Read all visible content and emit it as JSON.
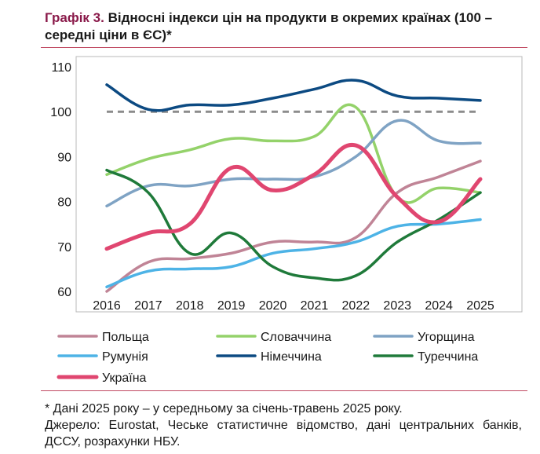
{
  "title": {
    "number": "Графік 3.",
    "text": "Відносні індекси цін на продукти в окремих країнах (100 – середні ціни в ЄС)*"
  },
  "footnotes": {
    "note": "* Дані 2025 року – у середньому за січень-травень 2025 року.",
    "source": "Джерело: Eurostat, Чеське статистичне відомство, дані центральних банків, ДССУ, розрахунки НБУ."
  },
  "chart_data": {
    "type": "line",
    "x": [
      2016,
      2017,
      2018,
      2019,
      2020,
      2021,
      2022,
      2023,
      2024,
      2025
    ],
    "ylim": [
      60,
      110
    ],
    "yticks": [
      60,
      70,
      80,
      90,
      100,
      110
    ],
    "reference_line": 100,
    "grid": false,
    "legend_position": "bottom",
    "series": [
      {
        "name": "Польща",
        "color": "#c08496",
        "values": [
          60,
          66.5,
          67.3,
          68.5,
          71,
          71,
          72,
          82,
          85.5,
          89
        ]
      },
      {
        "name": "Словаччина",
        "color": "#94d26a",
        "values": [
          86,
          89.5,
          91.5,
          94,
          93.5,
          94.5,
          101,
          81,
          83,
          82
        ]
      },
      {
        "name": "Угорщина",
        "color": "#7fa3c4",
        "values": [
          79,
          83.5,
          83.5,
          85,
          85,
          85.5,
          90,
          98,
          93.5,
          93
        ]
      },
      {
        "name": "Румунія",
        "color": "#4db3e6",
        "values": [
          61,
          64.5,
          65,
          65.5,
          68.5,
          69.5,
          71,
          74.5,
          75,
          76
        ]
      },
      {
        "name": "Німеччина",
        "color": "#0c4a82",
        "values": [
          106,
          100.5,
          101.5,
          101.5,
          103,
          105,
          107,
          103.5,
          103,
          102.5
        ]
      },
      {
        "name": "Туреччина",
        "color": "#1f7a3a",
        "values": [
          87,
          82,
          68.5,
          73,
          65.5,
          63,
          63.5,
          71,
          76,
          82
        ]
      },
      {
        "name": "Україна",
        "color": "#e04670",
        "values": [
          69.5,
          73,
          75,
          87.5,
          82.5,
          86,
          92.5,
          81,
          75.5,
          85
        ]
      }
    ]
  }
}
